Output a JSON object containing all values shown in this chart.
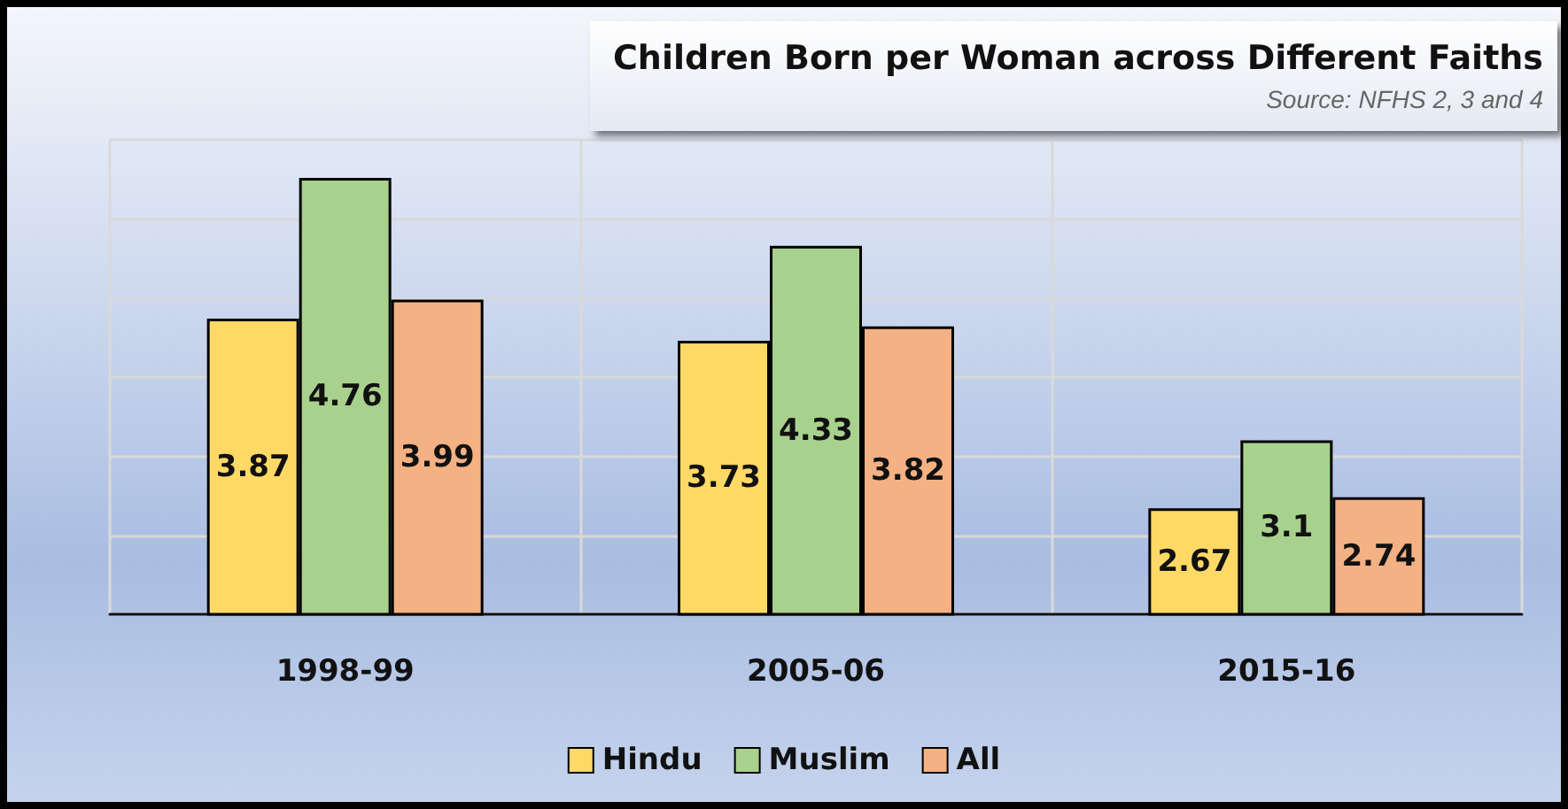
{
  "chart_data": {
    "type": "bar",
    "title": "Children Born per Woman across Different Faiths",
    "annotations": [
      "Source: NFHS 2, 3 and 4"
    ],
    "categories": [
      "1998-99",
      "2005-06",
      "2015-16"
    ],
    "series": [
      {
        "name": "Hindu",
        "color": "#ffd966",
        "values": [
          3.87,
          3.73,
          2.67
        ]
      },
      {
        "name": "Muslim",
        "color": "#a9d18e",
        "values": [
          4.76,
          4.33,
          3.1
        ]
      },
      {
        "name": "All",
        "color": "#f4b183",
        "values": [
          3.99,
          3.82,
          2.74
        ]
      }
    ],
    "ylim": [
      2,
      5
    ],
    "yticks": [
      {
        "value": 2,
        "label": null
      },
      {
        "value": 2.5,
        "label": null
      },
      {
        "value": 3,
        "label": null
      },
      {
        "value": 3.5,
        "label": null
      },
      {
        "value": 4,
        "label": null
      },
      {
        "value": 4.5,
        "label": null
      },
      {
        "value": 5,
        "label": null
      }
    ],
    "tick_labels": "x",
    "grid": true,
    "legend": "bottom",
    "data_labels": true
  }
}
